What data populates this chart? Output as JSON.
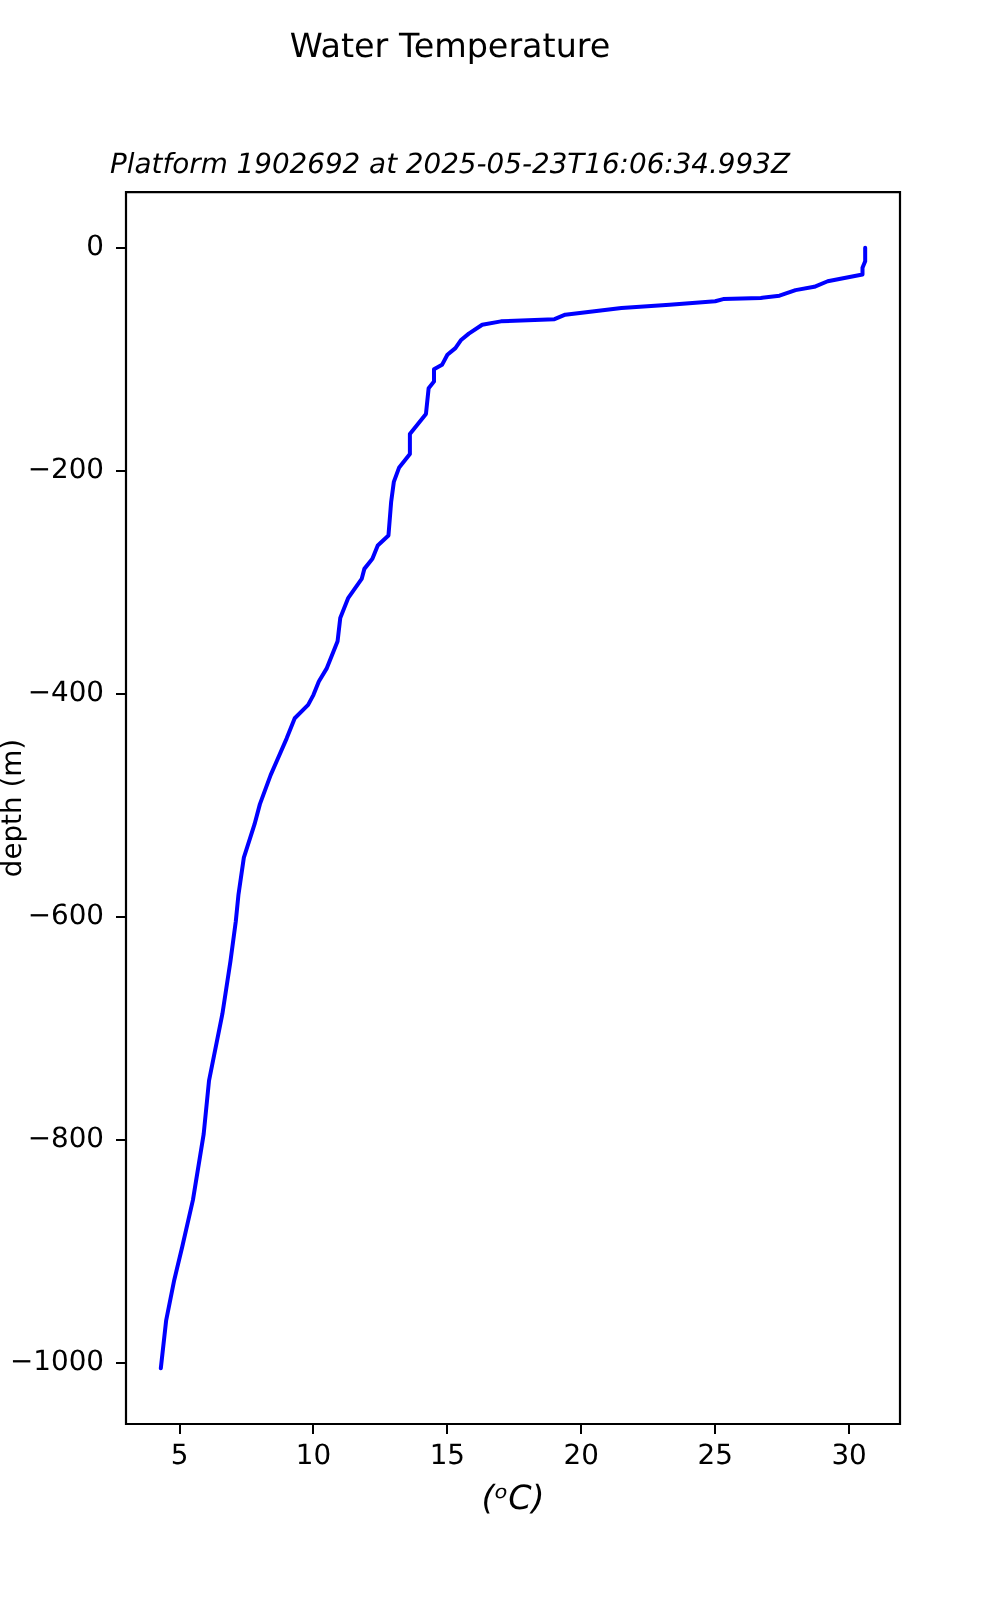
{
  "chart_data": {
    "type": "line",
    "title": "Water Temperature",
    "subtitle": "Platform 1902692 at 2025-05-23T16:06:34.993Z",
    "xlabel": "(ᵒC)",
    "ylabel": "depth (m)",
    "x": [
      30.6,
      30.6,
      30.5,
      30.5,
      29.2,
      28.7,
      28.0,
      27.4,
      26.7,
      25.3,
      25.0,
      23.3,
      21.5,
      19.4,
      19.0,
      17.0,
      16.3,
      15.8,
      15.5,
      15.3,
      15.0,
      14.8,
      14.5,
      14.5,
      14.3,
      14.2,
      13.9,
      13.6,
      13.6,
      13.2,
      13.0,
      12.9,
      12.8,
      12.4,
      12.2,
      11.9,
      11.8,
      11.3,
      11.0,
      10.9,
      10.5,
      10.2,
      10.0,
      9.8,
      9.3,
      9.0,
      8.4,
      8.0,
      7.8,
      7.4,
      7.2,
      7.1,
      6.9,
      6.6,
      6.1,
      5.9,
      5.5,
      5.1,
      4.8,
      4.5,
      4.3
    ],
    "series": [
      {
        "color": "#0000ff",
        "values": [
          0,
          -12,
          -18,
          -24,
          -30,
          -35,
          -38,
          -43,
          -45,
          -46,
          -48,
          -51,
          -54,
          -60,
          -64,
          -66,
          -69,
          -77,
          -83,
          -90,
          -96,
          -105,
          -109,
          -120,
          -126,
          -149,
          -158,
          -167,
          -185,
          -197,
          -210,
          -228,
          -258,
          -267,
          -279,
          -288,
          -297,
          -314,
          -332,
          -353,
          -377,
          -389,
          -401,
          -410,
          -422,
          -440,
          -473,
          -499,
          -517,
          -547,
          -580,
          -604,
          -640,
          -687,
          -747,
          -795,
          -854,
          -896,
          -926,
          -962,
          -1005
        ]
      }
    ],
    "xlim": [
      3.0,
      31.9
    ],
    "xticks": [
      5,
      10,
      15,
      20,
      25,
      30
    ],
    "ylim": [
      -1055,
      50
    ],
    "yticks": [
      -1000,
      -800,
      -600,
      -400,
      -200,
      0
    ]
  }
}
